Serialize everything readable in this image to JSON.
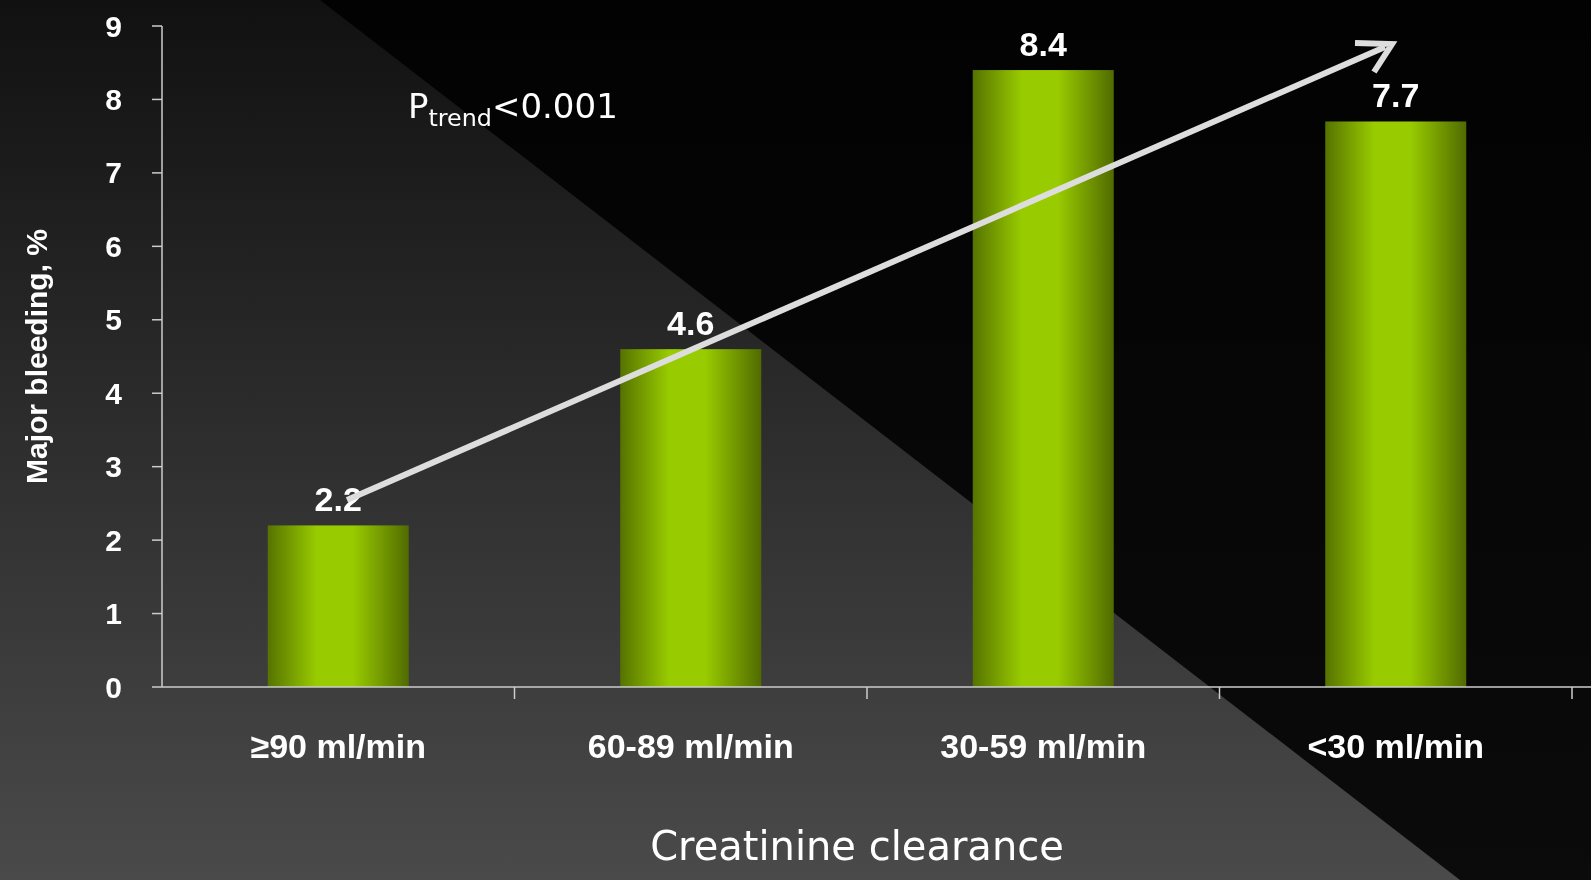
{
  "chart_data": {
    "type": "bar",
    "categories": [
      "≥90 ml/min",
      "60-89 ml/min",
      "30-59 ml/min",
      "<30 ml/min"
    ],
    "values": [
      2.2,
      4.6,
      8.4,
      7.7
    ],
    "color": "#99cc00",
    "ylim": [
      0,
      9
    ],
    "yticks": [
      0,
      1,
      2,
      3,
      4,
      5,
      6,
      7,
      8,
      9
    ],
    "ylabel": "Major bleeding, %",
    "xlabel": "Creatinine clearance",
    "annotations": [
      "P$_{trend}$<0.001"
    ],
    "data_labels": true
  }
}
